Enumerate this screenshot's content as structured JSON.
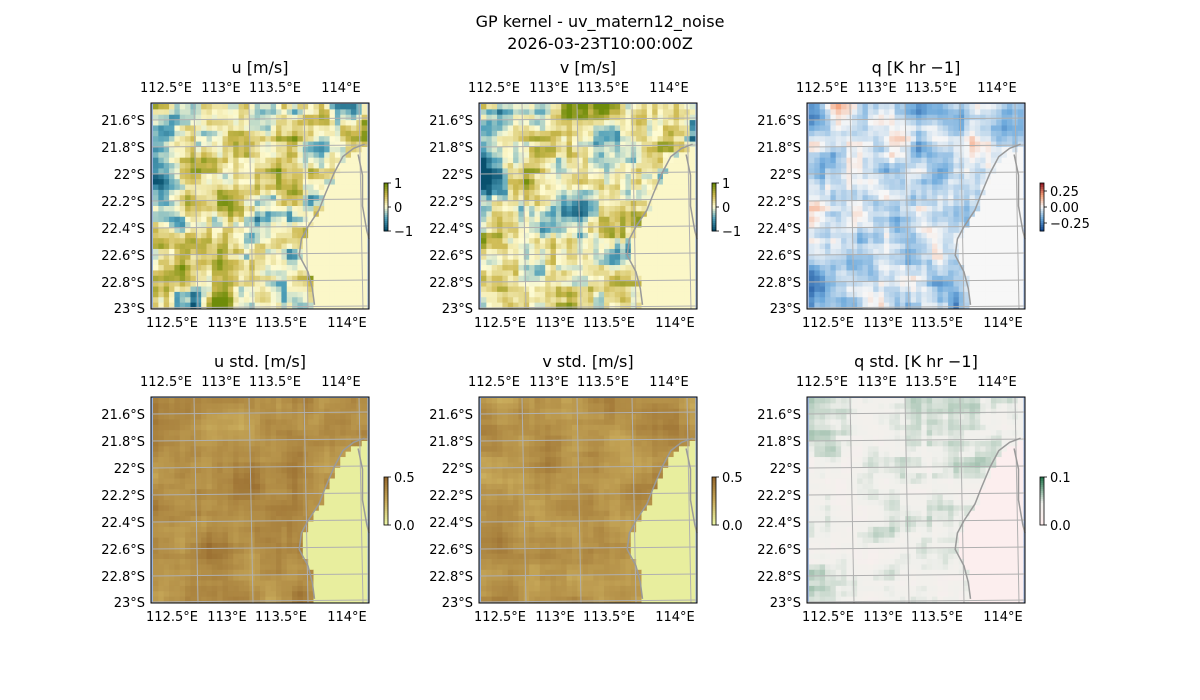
{
  "figure": {
    "title": "GP kernel - uv_matern12_noise",
    "subtitle": "2026-03-23T10:00:00Z"
  },
  "colors": {
    "ocean": "#9db5dc",
    "land_grey": "#9a9a9a",
    "grid": "#b0b0b0"
  },
  "chart_data": [
    {
      "type": "heatmap",
      "title": "u [m/s]",
      "x_ticks": [
        "112.5°E",
        "113°E",
        "113.5°E",
        "114°E"
      ],
      "y_ticks": [
        "21.6°S",
        "21.8°S",
        "22°S",
        "22.2°S",
        "22.4°S",
        "22.6°S",
        "22.8°S",
        "23°S"
      ],
      "xlim": [
        112.25,
        114.2
      ],
      "ylim": [
        -23.0,
        -21.5
      ],
      "colormap": "BrBG-like (teal → cream → olive)",
      "colorbar": {
        "ticks": [
          "1",
          "0",
          "−1"
        ],
        "min": -1,
        "max": 1
      }
    },
    {
      "type": "heatmap",
      "title": "v [m/s]",
      "x_ticks": [
        "112.5°E",
        "113°E",
        "113.5°E",
        "114°E"
      ],
      "y_ticks": [
        "21.6°S",
        "21.8°S",
        "22°S",
        "22.2°S",
        "22.4°S",
        "22.6°S",
        "22.8°S",
        "23°S"
      ],
      "xlim": [
        112.25,
        114.2
      ],
      "ylim": [
        -23.0,
        -21.5
      ],
      "colormap": "BrBG-like (teal → cream → olive)",
      "colorbar": {
        "ticks": [
          "1",
          "0",
          "−1"
        ],
        "min": -1,
        "max": 1
      }
    },
    {
      "type": "heatmap",
      "title": "q [K hr −1]",
      "x_ticks": [
        "112.5°E",
        "113°E",
        "113.5°E",
        "114°E"
      ],
      "y_ticks": [
        "21.6°S",
        "21.8°S",
        "22°S",
        "22.2°S",
        "22.4°S",
        "22.6°S",
        "22.8°S",
        "23°S"
      ],
      "xlim": [
        112.25,
        114.2
      ],
      "ylim": [
        -23.0,
        -21.5
      ],
      "colormap": "RdBu_r",
      "colorbar": {
        "ticks": [
          "0.25",
          "0.00",
          "−0.25"
        ],
        "min": -0.4,
        "max": 0.4
      }
    },
    {
      "type": "heatmap",
      "title": "u std. [m/s]",
      "x_ticks": [
        "112.5°E",
        "113°E",
        "113.5°E",
        "114°E"
      ],
      "y_ticks": [
        "21.6°S",
        "21.8°S",
        "22°S",
        "22.2°S",
        "22.4°S",
        "22.6°S",
        "22.8°S",
        "23°S"
      ],
      "xlim": [
        112.25,
        114.2
      ],
      "ylim": [
        -23.0,
        -21.5
      ],
      "colormap": "brown → pale green",
      "colorbar": {
        "ticks": [
          "0.5",
          "0.0"
        ],
        "min": 0,
        "max": 0.5
      }
    },
    {
      "type": "heatmap",
      "title": "v std. [m/s]",
      "x_ticks": [
        "112.5°E",
        "113°E",
        "113.5°E",
        "114°E"
      ],
      "y_ticks": [
        "21.6°S",
        "21.8°S",
        "22°S",
        "22.2°S",
        "22.4°S",
        "22.6°S",
        "22.8°S",
        "23°S"
      ],
      "xlim": [
        112.25,
        114.2
      ],
      "ylim": [
        -23.0,
        -21.5
      ],
      "colormap": "brown → pale green",
      "colorbar": {
        "ticks": [
          "0.5",
          "0.0"
        ],
        "min": 0,
        "max": 0.5
      }
    },
    {
      "type": "heatmap",
      "title": "q std. [K hr −1]",
      "x_ticks": [
        "112.5°E",
        "113°E",
        "113.5°E",
        "114°E"
      ],
      "y_ticks": [
        "21.6°S",
        "21.8°S",
        "22°S",
        "22.2°S",
        "22.4°S",
        "22.6°S",
        "22.8°S",
        "23°S"
      ],
      "xlim": [
        112.25,
        114.2
      ],
      "ylim": [
        -23.0,
        -21.5
      ],
      "colormap": "pink-white → green",
      "colorbar": {
        "ticks": [
          "0.1",
          "0.0"
        ],
        "min": 0,
        "max": 0.14
      }
    }
  ]
}
